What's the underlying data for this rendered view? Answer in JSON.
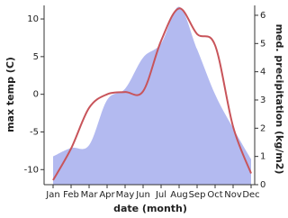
{
  "chart_data": {
    "type": "line",
    "x_label": "date (month)",
    "y_label": "max temp (C)",
    "y2_label": "med. precipitation (kg/m2)",
    "categories": [
      "Jan",
      "Feb",
      "Mar",
      "Apr",
      "May",
      "Jun",
      "Jul",
      "Aug",
      "Sep",
      "Oct",
      "Nov",
      "Dec"
    ],
    "series": [
      {
        "name": "max temp",
        "color": "#c8545a",
        "values": [
          -11.4,
          -7.2,
          -1.8,
          0,
          0.3,
          0.4,
          7.1,
          11.4,
          8,
          6.5,
          -4.3,
          -10.5
        ]
      },
      {
        "name": "med. precipitation",
        "color": "#b3baf0",
        "axis": "y2",
        "area": true,
        "values": [
          1.0,
          1.3,
          1.4,
          3.0,
          3.4,
          4.5,
          5.0,
          6.3,
          4.8,
          3.2,
          2.0,
          0.9
        ]
      }
    ],
    "ylim": [
      -12,
      11.8
    ],
    "yticks": [
      -10,
      -5,
      0,
      5,
      10
    ],
    "y2lim": [
      0,
      6.35
    ],
    "y2ticks": [
      0,
      1,
      2,
      3,
      4,
      5,
      6
    ]
  }
}
